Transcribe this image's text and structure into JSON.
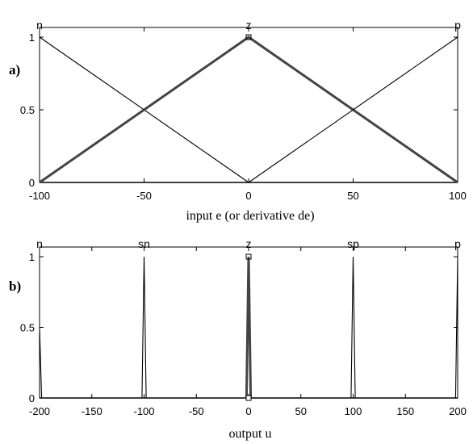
{
  "chart_data": [
    {
      "type": "line",
      "panel_label": "a)",
      "xlabel": "input e (or derivative de)",
      "ylabel": "",
      "xlim": [
        -100,
        100
      ],
      "ylim": [
        0,
        1
      ],
      "xticks": [
        -100,
        -50,
        0,
        50,
        100
      ],
      "yticks": [
        0,
        0.5,
        1
      ],
      "grid": false,
      "series": [
        {
          "name": "n",
          "x": [
            -100,
            0
          ],
          "y": [
            1,
            0
          ],
          "label_x": -100,
          "bold": false
        },
        {
          "name": "z",
          "x": [
            -100,
            0,
            100
          ],
          "y": [
            0,
            1,
            0
          ],
          "label_x": 0,
          "bold": true
        },
        {
          "name": "p",
          "x": [
            0,
            100
          ],
          "y": [
            0,
            1
          ],
          "label_x": 100,
          "bold": false
        }
      ]
    },
    {
      "type": "line",
      "panel_label": "b)",
      "xlabel": "output u",
      "ylabel": "",
      "xlim": [
        -200,
        200
      ],
      "ylim": [
        0,
        1
      ],
      "xticks": [
        -200,
        -150,
        -100,
        -50,
        0,
        50,
        100,
        150,
        200
      ],
      "yticks": [
        0,
        0.5,
        1
      ],
      "grid": false,
      "series": [
        {
          "name": "n",
          "x": [
            -200,
            -198,
            -196
          ],
          "y": [
            0.5,
            0,
            0
          ],
          "label_x": -200,
          "bold": false
        },
        {
          "name": "sn",
          "x": [
            -102,
            -100,
            -98
          ],
          "y": [
            0,
            1,
            0
          ],
          "label_x": -100,
          "bold": false
        },
        {
          "name": "z",
          "x": [
            -2,
            0,
            2
          ],
          "y": [
            0,
            1,
            0
          ],
          "label_x": 0,
          "bold": true
        },
        {
          "name": "sp",
          "x": [
            98,
            100,
            102
          ],
          "y": [
            0,
            1,
            0
          ],
          "label_x": 100,
          "bold": false
        },
        {
          "name": "p",
          "x": [
            196,
            198,
            200
          ],
          "y": [
            0,
            0,
            1
          ],
          "label_x": 200,
          "bold": false
        }
      ]
    }
  ]
}
